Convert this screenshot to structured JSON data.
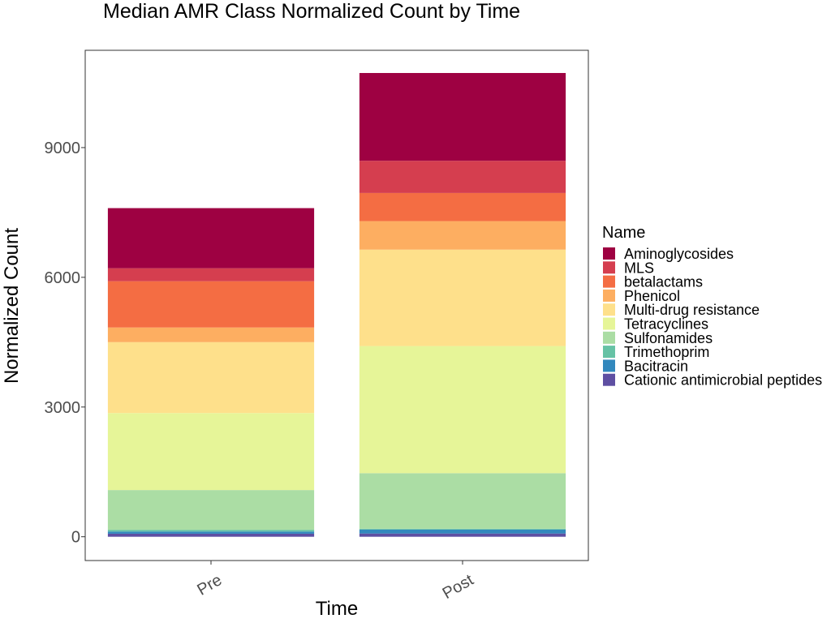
{
  "chart_data": {
    "type": "bar",
    "stacked": true,
    "title": "Median AMR Class Normalized Count by Time",
    "xlabel": "Time",
    "ylabel": "Normalized Count",
    "categories": [
      "Pre",
      "Post"
    ],
    "ylim": [
      -550,
      11250
    ],
    "yticks": [
      0,
      3000,
      6000,
      9000
    ],
    "grid": false,
    "legend": {
      "title": "Name",
      "position": "right"
    },
    "series": [
      {
        "name": "Cationic antimicrobial peptides",
        "color": "#5E4FA2",
        "values": [
          70,
          75
        ]
      },
      {
        "name": "Bacitracin",
        "color": "#3288BD",
        "values": [
          50,
          90
        ]
      },
      {
        "name": "Trimethoprim",
        "color": "#66C2A5",
        "values": [
          40,
          20
        ]
      },
      {
        "name": "Sulfonamides",
        "color": "#ABDDA4",
        "values": [
          920,
          1285
        ]
      },
      {
        "name": "Tetracyclines",
        "color": "#E6F598",
        "values": [
          1780,
          2940
        ]
      },
      {
        "name": "Multi-drug resistance",
        "color": "#FEE08B",
        "values": [
          1640,
          2230
        ]
      },
      {
        "name": "Phenicol",
        "color": "#FDAE61",
        "values": [
          340,
          660
        ]
      },
      {
        "name": "betalactams",
        "color": "#F46D43",
        "values": [
          1070,
          650
        ]
      },
      {
        "name": "MLS",
        "color": "#D53E4F",
        "values": [
          300,
          745
        ]
      },
      {
        "name": "Aminoglycosides",
        "color": "#9E0142",
        "values": [
          1390,
          2030
        ]
      }
    ]
  }
}
